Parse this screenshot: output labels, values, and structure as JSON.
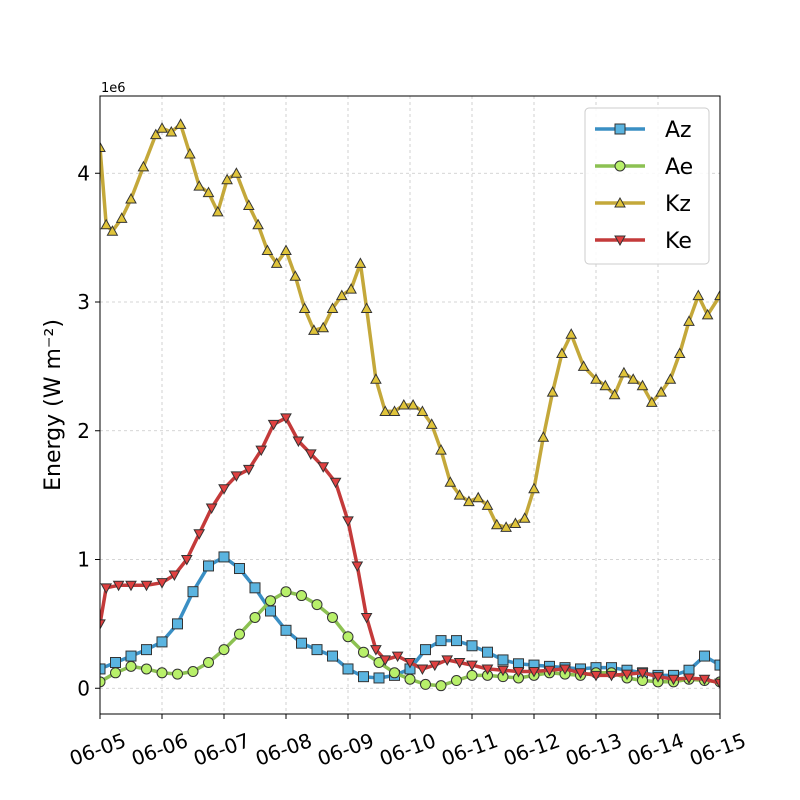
{
  "chart_data": {
    "type": "line",
    "xlabel": "",
    "ylabel": "Energy (W m⁻²)",
    "y_offset_label": "1e6",
    "x_tick_labels": [
      "06-05",
      "06-06",
      "06-07",
      "06-08",
      "06-09",
      "06-10",
      "06-11",
      "06-12",
      "06-13",
      "06-14",
      "06-15"
    ],
    "y_tick_values": [
      0,
      1,
      2,
      3,
      4
    ],
    "y_tick_labels": [
      "0",
      "1",
      "2",
      "3",
      "4"
    ],
    "xlim": [
      0,
      10
    ],
    "ylim": [
      -0.2,
      4.6
    ],
    "x_unit": "days since 06-05",
    "y_unit": "1e6",
    "grid": true,
    "legend_position": "upper right",
    "series": [
      {
        "name": "Az",
        "color": "#3a8fc4",
        "marker_fill": "#5ab4e0",
        "marker": "square",
        "x": [
          0,
          0.25,
          0.5,
          0.75,
          1.0,
          1.25,
          1.5,
          1.75,
          2.0,
          2.25,
          2.5,
          2.75,
          3.0,
          3.25,
          3.5,
          3.75,
          4.0,
          4.25,
          4.5,
          4.75,
          5.0,
          5.25,
          5.5,
          5.75,
          6.0,
          6.25,
          6.5,
          6.75,
          7.0,
          7.25,
          7.5,
          7.75,
          8.0,
          8.25,
          8.5,
          8.75,
          9.0,
          9.25,
          9.5,
          9.75,
          10.0
        ],
        "y": [
          0.15,
          0.2,
          0.25,
          0.3,
          0.36,
          0.5,
          0.75,
          0.95,
          1.02,
          0.93,
          0.78,
          0.6,
          0.45,
          0.35,
          0.3,
          0.25,
          0.15,
          0.09,
          0.08,
          0.1,
          0.15,
          0.3,
          0.37,
          0.37,
          0.33,
          0.28,
          0.22,
          0.19,
          0.18,
          0.17,
          0.16,
          0.15,
          0.16,
          0.16,
          0.14,
          0.12,
          0.1,
          0.1,
          0.14,
          0.25,
          0.18
        ]
      },
      {
        "name": "Ae",
        "color": "#8cc152",
        "marker_fill": "#b8f06a",
        "marker": "circle",
        "x": [
          0,
          0.25,
          0.5,
          0.75,
          1.0,
          1.25,
          1.5,
          1.75,
          2.0,
          2.25,
          2.5,
          2.75,
          3.0,
          3.25,
          3.5,
          3.75,
          4.0,
          4.25,
          4.5,
          4.75,
          5.0,
          5.25,
          5.5,
          5.75,
          6.0,
          6.25,
          6.5,
          6.75,
          7.0,
          7.25,
          7.5,
          7.75,
          8.0,
          8.25,
          8.5,
          8.75,
          9.0,
          9.25,
          9.5,
          9.75,
          10.0
        ],
        "y": [
          0.05,
          0.12,
          0.17,
          0.15,
          0.12,
          0.11,
          0.13,
          0.2,
          0.3,
          0.42,
          0.55,
          0.68,
          0.75,
          0.72,
          0.65,
          0.55,
          0.4,
          0.28,
          0.2,
          0.12,
          0.07,
          0.03,
          0.02,
          0.06,
          0.1,
          0.1,
          0.09,
          0.08,
          0.1,
          0.12,
          0.11,
          0.1,
          0.12,
          0.12,
          0.08,
          0.06,
          0.05,
          0.05,
          0.07,
          0.06,
          0.05
        ]
      },
      {
        "name": "Kz",
        "color": "#c4a83a",
        "marker_fill": "#e0c43a",
        "marker": "triangle-up",
        "x": [
          0,
          0.1,
          0.2,
          0.35,
          0.5,
          0.7,
          0.9,
          1.0,
          1.15,
          1.3,
          1.45,
          1.6,
          1.75,
          1.9,
          2.05,
          2.2,
          2.4,
          2.55,
          2.7,
          2.85,
          3.0,
          3.15,
          3.3,
          3.45,
          3.6,
          3.75,
          3.9,
          4.05,
          4.2,
          4.3,
          4.45,
          4.6,
          4.75,
          4.9,
          5.05,
          5.2,
          5.35,
          5.5,
          5.65,
          5.8,
          5.95,
          6.1,
          6.25,
          6.4,
          6.55,
          6.7,
          6.85,
          7.0,
          7.15,
          7.3,
          7.45,
          7.6,
          7.8,
          8.0,
          8.15,
          8.3,
          8.45,
          8.6,
          8.75,
          8.9,
          9.05,
          9.2,
          9.35,
          9.5,
          9.65,
          9.8,
          10.0
        ],
        "y": [
          4.2,
          3.6,
          3.55,
          3.65,
          3.8,
          4.05,
          4.3,
          4.35,
          4.32,
          4.38,
          4.15,
          3.9,
          3.85,
          3.7,
          3.95,
          4.0,
          3.75,
          3.6,
          3.4,
          3.3,
          3.4,
          3.2,
          2.95,
          2.78,
          2.8,
          2.95,
          3.05,
          3.1,
          3.3,
          2.95,
          2.4,
          2.15,
          2.15,
          2.2,
          2.2,
          2.15,
          2.05,
          1.85,
          1.6,
          1.5,
          1.45,
          1.48,
          1.42,
          1.27,
          1.25,
          1.28,
          1.32,
          1.55,
          1.95,
          2.3,
          2.6,
          2.75,
          2.5,
          2.4,
          2.35,
          2.28,
          2.45,
          2.4,
          2.35,
          2.22,
          2.3,
          2.4,
          2.6,
          2.85,
          3.05,
          2.9,
          3.05
        ]
      },
      {
        "name": "Ke",
        "color": "#c43a3a",
        "marker_fill": "#e04040",
        "marker": "triangle-down",
        "x": [
          0,
          0.1,
          0.3,
          0.5,
          0.75,
          1.0,
          1.2,
          1.4,
          1.6,
          1.8,
          2.0,
          2.2,
          2.4,
          2.6,
          2.8,
          3.0,
          3.2,
          3.4,
          3.6,
          3.8,
          4.0,
          4.15,
          4.3,
          4.45,
          4.6,
          4.8,
          5.0,
          5.2,
          5.4,
          5.6,
          5.8,
          6.0,
          6.25,
          6.5,
          6.75,
          7.0,
          7.25,
          7.5,
          7.75,
          8.0,
          8.25,
          8.5,
          8.75,
          9.0,
          9.25,
          9.5,
          9.75,
          10.0
        ],
        "y": [
          0.5,
          0.78,
          0.8,
          0.8,
          0.8,
          0.82,
          0.88,
          1.0,
          1.2,
          1.4,
          1.55,
          1.65,
          1.7,
          1.85,
          2.05,
          2.1,
          1.92,
          1.82,
          1.72,
          1.6,
          1.3,
          0.95,
          0.55,
          0.3,
          0.22,
          0.25,
          0.2,
          0.15,
          0.18,
          0.22,
          0.2,
          0.18,
          0.15,
          0.14,
          0.13,
          0.13,
          0.14,
          0.15,
          0.12,
          0.1,
          0.1,
          0.11,
          0.12,
          0.09,
          0.07,
          0.08,
          0.07,
          0.04
        ]
      }
    ]
  }
}
